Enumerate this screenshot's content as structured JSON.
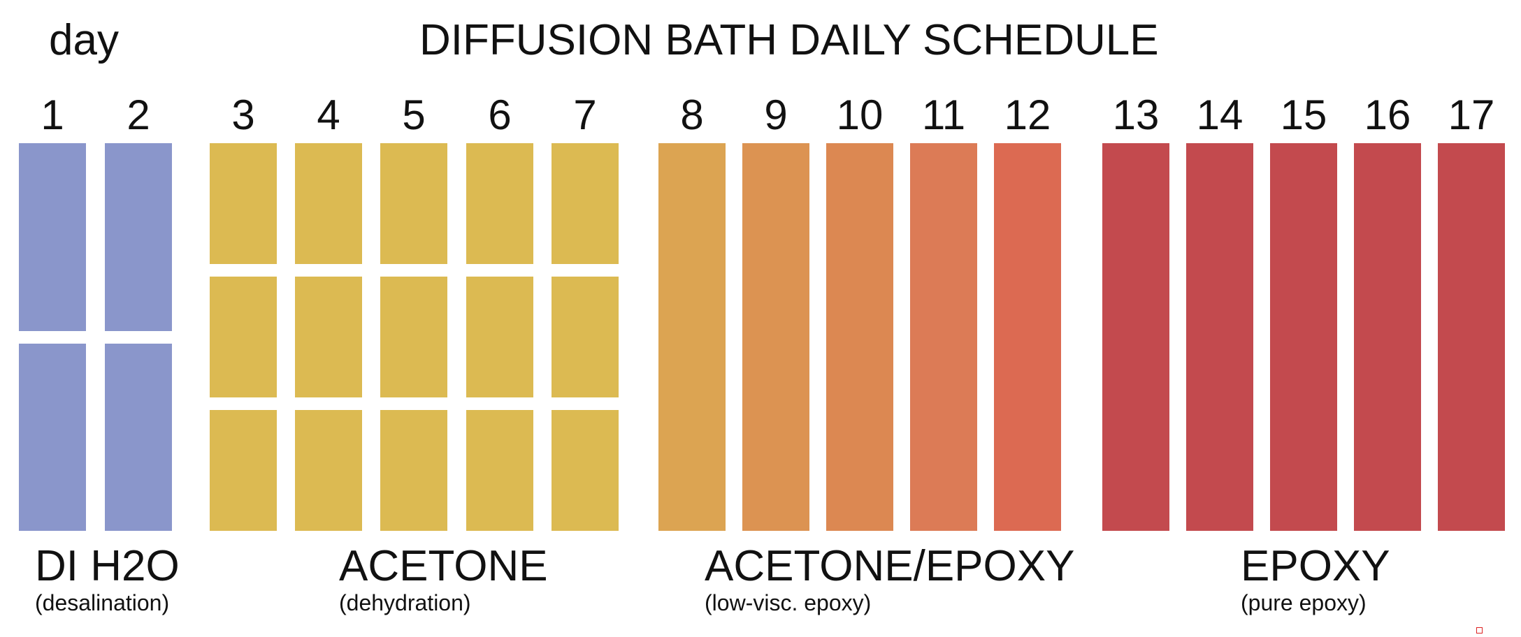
{
  "title": "DIFFUSION BATH DAILY SCHEDULE",
  "day_label": "day",
  "groups": [
    {
      "name": "DI H2O",
      "subtitle": "(desalination)",
      "color": "#8a96cb",
      "days": [
        "1",
        "2"
      ],
      "baths_per_day": 2
    },
    {
      "name": "ACETONE",
      "subtitle": "(dehydration)",
      "color": "#dcba52",
      "days": [
        "3",
        "4",
        "5",
        "6",
        "7"
      ],
      "baths_per_day": 3
    },
    {
      "name": "ACETONE/EPOXY",
      "subtitle": "(low-visc. epoxy)",
      "days": [
        "8",
        "9",
        "10",
        "11",
        "12"
      ],
      "baths_per_day": 1,
      "colors": [
        "#dca452",
        "#dc9352",
        "#dc8852",
        "#dc7b56",
        "#dc6a52"
      ]
    },
    {
      "name": "EPOXY",
      "subtitle": "(pure epoxy)",
      "color": "#c34a4e",
      "days": [
        "13",
        "14",
        "15",
        "16",
        "17"
      ],
      "baths_per_day": 1
    }
  ]
}
